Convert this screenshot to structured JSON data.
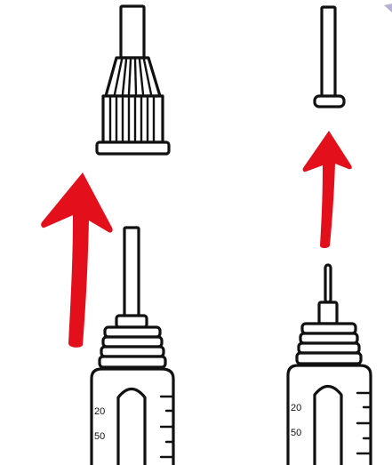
{
  "colors": {
    "ink": "#111111",
    "arrow": "#e3101c",
    "background": "#ffffff",
    "corner_mark": "#7a6fb0"
  },
  "left_pen": {
    "scale_labels": [
      "20",
      "50"
    ]
  },
  "right_pen": {
    "scale_labels": [
      "20",
      "50"
    ]
  }
}
